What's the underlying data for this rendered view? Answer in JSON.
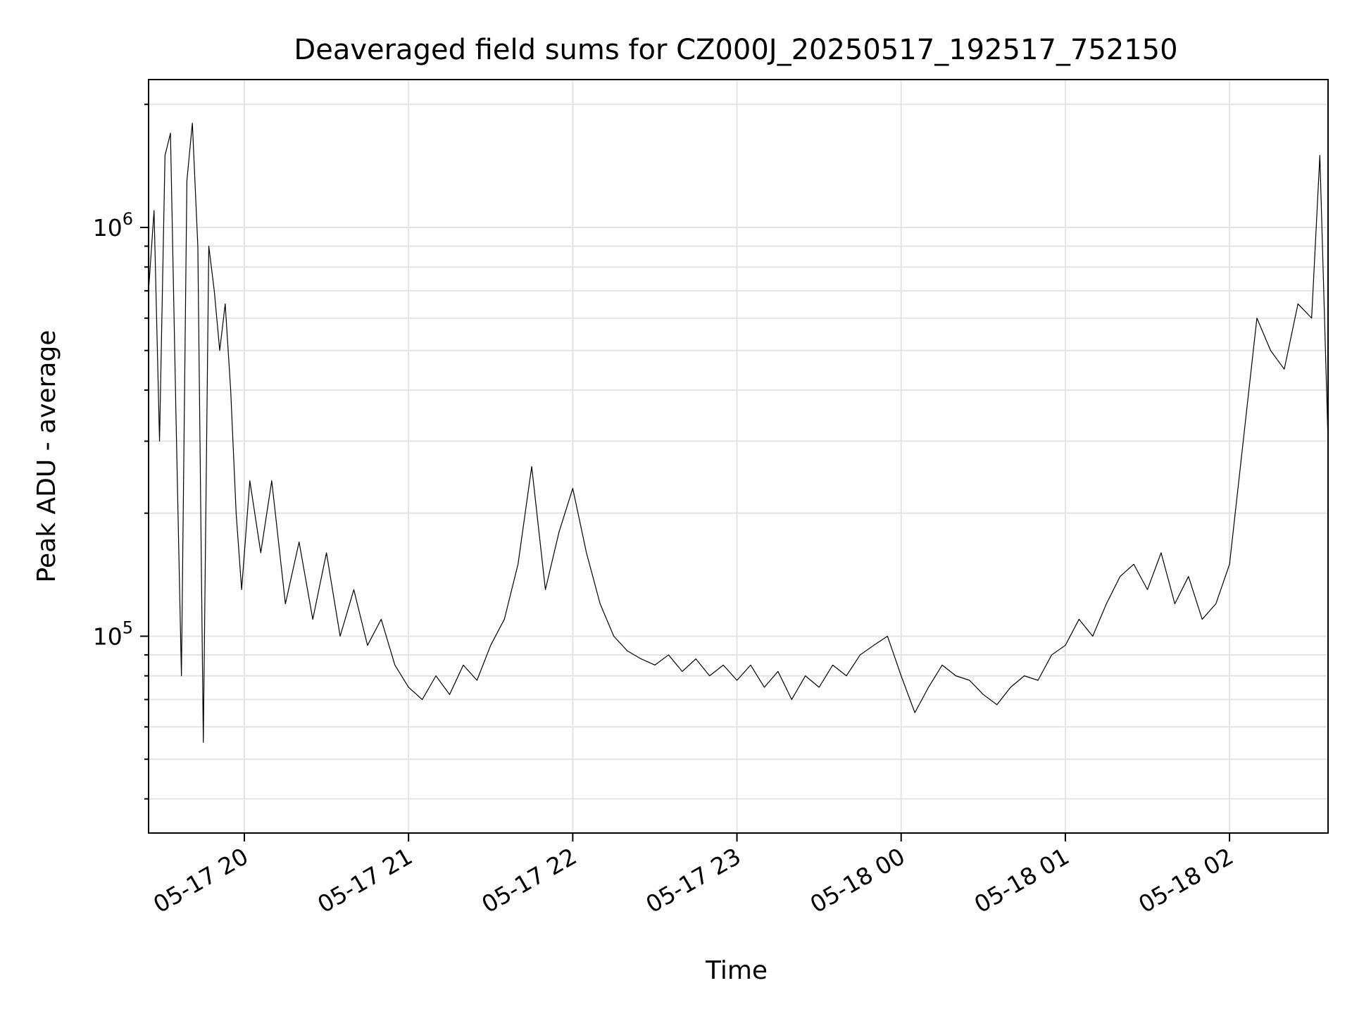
{
  "chart_data": {
    "type": "line",
    "title": "Deaveraged field sums for CZ000J_20250517_192517_752150",
    "xlabel": "Time",
    "ylabel": "Peak ADU - average",
    "yscale": "log",
    "xlim": [
      "2025-05-17 19:25",
      "2025-05-18 02:36"
    ],
    "ylim": [
      33000,
      2300000
    ],
    "grid": true,
    "x_ticks": [
      {
        "value": "2025-05-17 20:00",
        "label": "05-17 20"
      },
      {
        "value": "2025-05-17 21:00",
        "label": "05-17 21"
      },
      {
        "value": "2025-05-17 22:00",
        "label": "05-17 22"
      },
      {
        "value": "2025-05-17 23:00",
        "label": "05-17 23"
      },
      {
        "value": "2025-05-18 00:00",
        "label": "05-18 00"
      },
      {
        "value": "2025-05-18 01:00",
        "label": "05-18 01"
      },
      {
        "value": "2025-05-18 02:00",
        "label": "05-18 02"
      }
    ],
    "y_ticks": [
      {
        "value": 100000,
        "base": "10",
        "exp": "5"
      },
      {
        "value": 1000000,
        "base": "10",
        "exp": "6"
      }
    ],
    "series": [
      {
        "color": "#000000",
        "points": [
          [
            "2025-05-17 19:25",
            700000
          ],
          [
            "2025-05-17 19:27",
            1100000
          ],
          [
            "2025-05-17 19:29",
            300000
          ],
          [
            "2025-05-17 19:31",
            1500000
          ],
          [
            "2025-05-17 19:33",
            1700000
          ],
          [
            "2025-05-17 19:35",
            350000
          ],
          [
            "2025-05-17 19:37",
            80000
          ],
          [
            "2025-05-17 19:39",
            1300000
          ],
          [
            "2025-05-17 19:41",
            1800000
          ],
          [
            "2025-05-17 19:43",
            900000
          ],
          [
            "2025-05-17 19:45",
            55000
          ],
          [
            "2025-05-17 19:47",
            900000
          ],
          [
            "2025-05-17 19:49",
            700000
          ],
          [
            "2025-05-17 19:51",
            500000
          ],
          [
            "2025-05-17 19:53",
            650000
          ],
          [
            "2025-05-17 19:55",
            400000
          ],
          [
            "2025-05-17 19:57",
            200000
          ],
          [
            "2025-05-17 19:59",
            130000
          ],
          [
            "2025-05-17 20:02",
            240000
          ],
          [
            "2025-05-17 20:06",
            160000
          ],
          [
            "2025-05-17 20:10",
            240000
          ],
          [
            "2025-05-17 20:15",
            120000
          ],
          [
            "2025-05-17 20:20",
            170000
          ],
          [
            "2025-05-17 20:25",
            110000
          ],
          [
            "2025-05-17 20:30",
            160000
          ],
          [
            "2025-05-17 20:35",
            100000
          ],
          [
            "2025-05-17 20:40",
            130000
          ],
          [
            "2025-05-17 20:45",
            95000
          ],
          [
            "2025-05-17 20:50",
            110000
          ],
          [
            "2025-05-17 20:55",
            85000
          ],
          [
            "2025-05-17 21:00",
            75000
          ],
          [
            "2025-05-17 21:05",
            70000
          ],
          [
            "2025-05-17 21:10",
            80000
          ],
          [
            "2025-05-17 21:15",
            72000
          ],
          [
            "2025-05-17 21:20",
            85000
          ],
          [
            "2025-05-17 21:25",
            78000
          ],
          [
            "2025-05-17 21:30",
            95000
          ],
          [
            "2025-05-17 21:35",
            110000
          ],
          [
            "2025-05-17 21:40",
            150000
          ],
          [
            "2025-05-17 21:45",
            260000
          ],
          [
            "2025-05-17 21:50",
            130000
          ],
          [
            "2025-05-17 21:55",
            180000
          ],
          [
            "2025-05-17 22:00",
            230000
          ],
          [
            "2025-05-17 22:05",
            160000
          ],
          [
            "2025-05-17 22:10",
            120000
          ],
          [
            "2025-05-17 22:15",
            100000
          ],
          [
            "2025-05-17 22:20",
            92000
          ],
          [
            "2025-05-17 22:25",
            88000
          ],
          [
            "2025-05-17 22:30",
            85000
          ],
          [
            "2025-05-17 22:35",
            90000
          ],
          [
            "2025-05-17 22:40",
            82000
          ],
          [
            "2025-05-17 22:45",
            88000
          ],
          [
            "2025-05-17 22:50",
            80000
          ],
          [
            "2025-05-17 22:55",
            85000
          ],
          [
            "2025-05-17 23:00",
            78000
          ],
          [
            "2025-05-17 23:05",
            85000
          ],
          [
            "2025-05-17 23:10",
            75000
          ],
          [
            "2025-05-17 23:15",
            82000
          ],
          [
            "2025-05-17 23:20",
            70000
          ],
          [
            "2025-05-17 23:25",
            80000
          ],
          [
            "2025-05-17 23:30",
            75000
          ],
          [
            "2025-05-17 23:35",
            85000
          ],
          [
            "2025-05-17 23:40",
            80000
          ],
          [
            "2025-05-17 23:45",
            90000
          ],
          [
            "2025-05-17 23:50",
            95000
          ],
          [
            "2025-05-17 23:55",
            100000
          ],
          [
            "2025-05-18 00:00",
            80000
          ],
          [
            "2025-05-18 00:05",
            65000
          ],
          [
            "2025-05-18 00:10",
            75000
          ],
          [
            "2025-05-18 00:15",
            85000
          ],
          [
            "2025-05-18 00:20",
            80000
          ],
          [
            "2025-05-18 00:25",
            78000
          ],
          [
            "2025-05-18 00:30",
            72000
          ],
          [
            "2025-05-18 00:35",
            68000
          ],
          [
            "2025-05-18 00:40",
            75000
          ],
          [
            "2025-05-18 00:45",
            80000
          ],
          [
            "2025-05-18 00:50",
            78000
          ],
          [
            "2025-05-18 00:55",
            90000
          ],
          [
            "2025-05-18 01:00",
            95000
          ],
          [
            "2025-05-18 01:05",
            110000
          ],
          [
            "2025-05-18 01:10",
            100000
          ],
          [
            "2025-05-18 01:15",
            120000
          ],
          [
            "2025-05-18 01:20",
            140000
          ],
          [
            "2025-05-18 01:25",
            150000
          ],
          [
            "2025-05-18 01:30",
            130000
          ],
          [
            "2025-05-18 01:35",
            160000
          ],
          [
            "2025-05-18 01:40",
            120000
          ],
          [
            "2025-05-18 01:45",
            140000
          ],
          [
            "2025-05-18 01:50",
            110000
          ],
          [
            "2025-05-18 01:55",
            120000
          ],
          [
            "2025-05-18 02:00",
            150000
          ],
          [
            "2025-05-18 02:05",
            300000
          ],
          [
            "2025-05-18 02:10",
            600000
          ],
          [
            "2025-05-18 02:15",
            500000
          ],
          [
            "2025-05-18 02:20",
            450000
          ],
          [
            "2025-05-18 02:25",
            650000
          ],
          [
            "2025-05-18 02:30",
            600000
          ],
          [
            "2025-05-18 02:33",
            1500000
          ],
          [
            "2025-05-18 02:36",
            300000
          ]
        ]
      }
    ]
  }
}
